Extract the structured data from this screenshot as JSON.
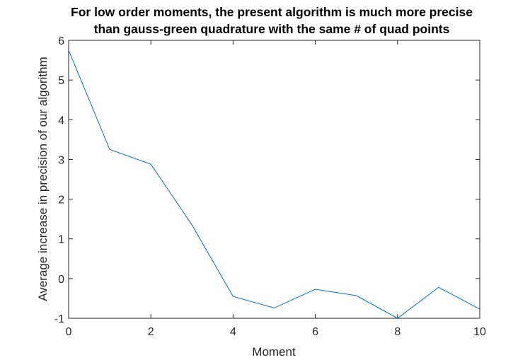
{
  "chart_data": {
    "type": "line",
    "title_lines": [
      "For low order moments, the present algorithm is much more precise",
      "than gauss-green quadrature with the same # of quad points"
    ],
    "xlabel": "Moment",
    "ylabel": "Average increase in precision of our algorithm",
    "xlim": [
      0,
      10
    ],
    "ylim": [
      -1,
      6
    ],
    "xticks": [
      0,
      2,
      4,
      6,
      8,
      10
    ],
    "yticks": [
      -1,
      0,
      1,
      2,
      3,
      4,
      5,
      6
    ],
    "grid": false,
    "series": [
      {
        "color": "#0072bd",
        "x": [
          0,
          1,
          2,
          3,
          4,
          5,
          6,
          7,
          8,
          9,
          10
        ],
        "y": [
          5.75,
          3.25,
          2.88,
          1.35,
          -0.45,
          -0.74,
          -0.27,
          -0.43,
          -1.0,
          -0.22,
          -0.77
        ]
      }
    ]
  }
}
